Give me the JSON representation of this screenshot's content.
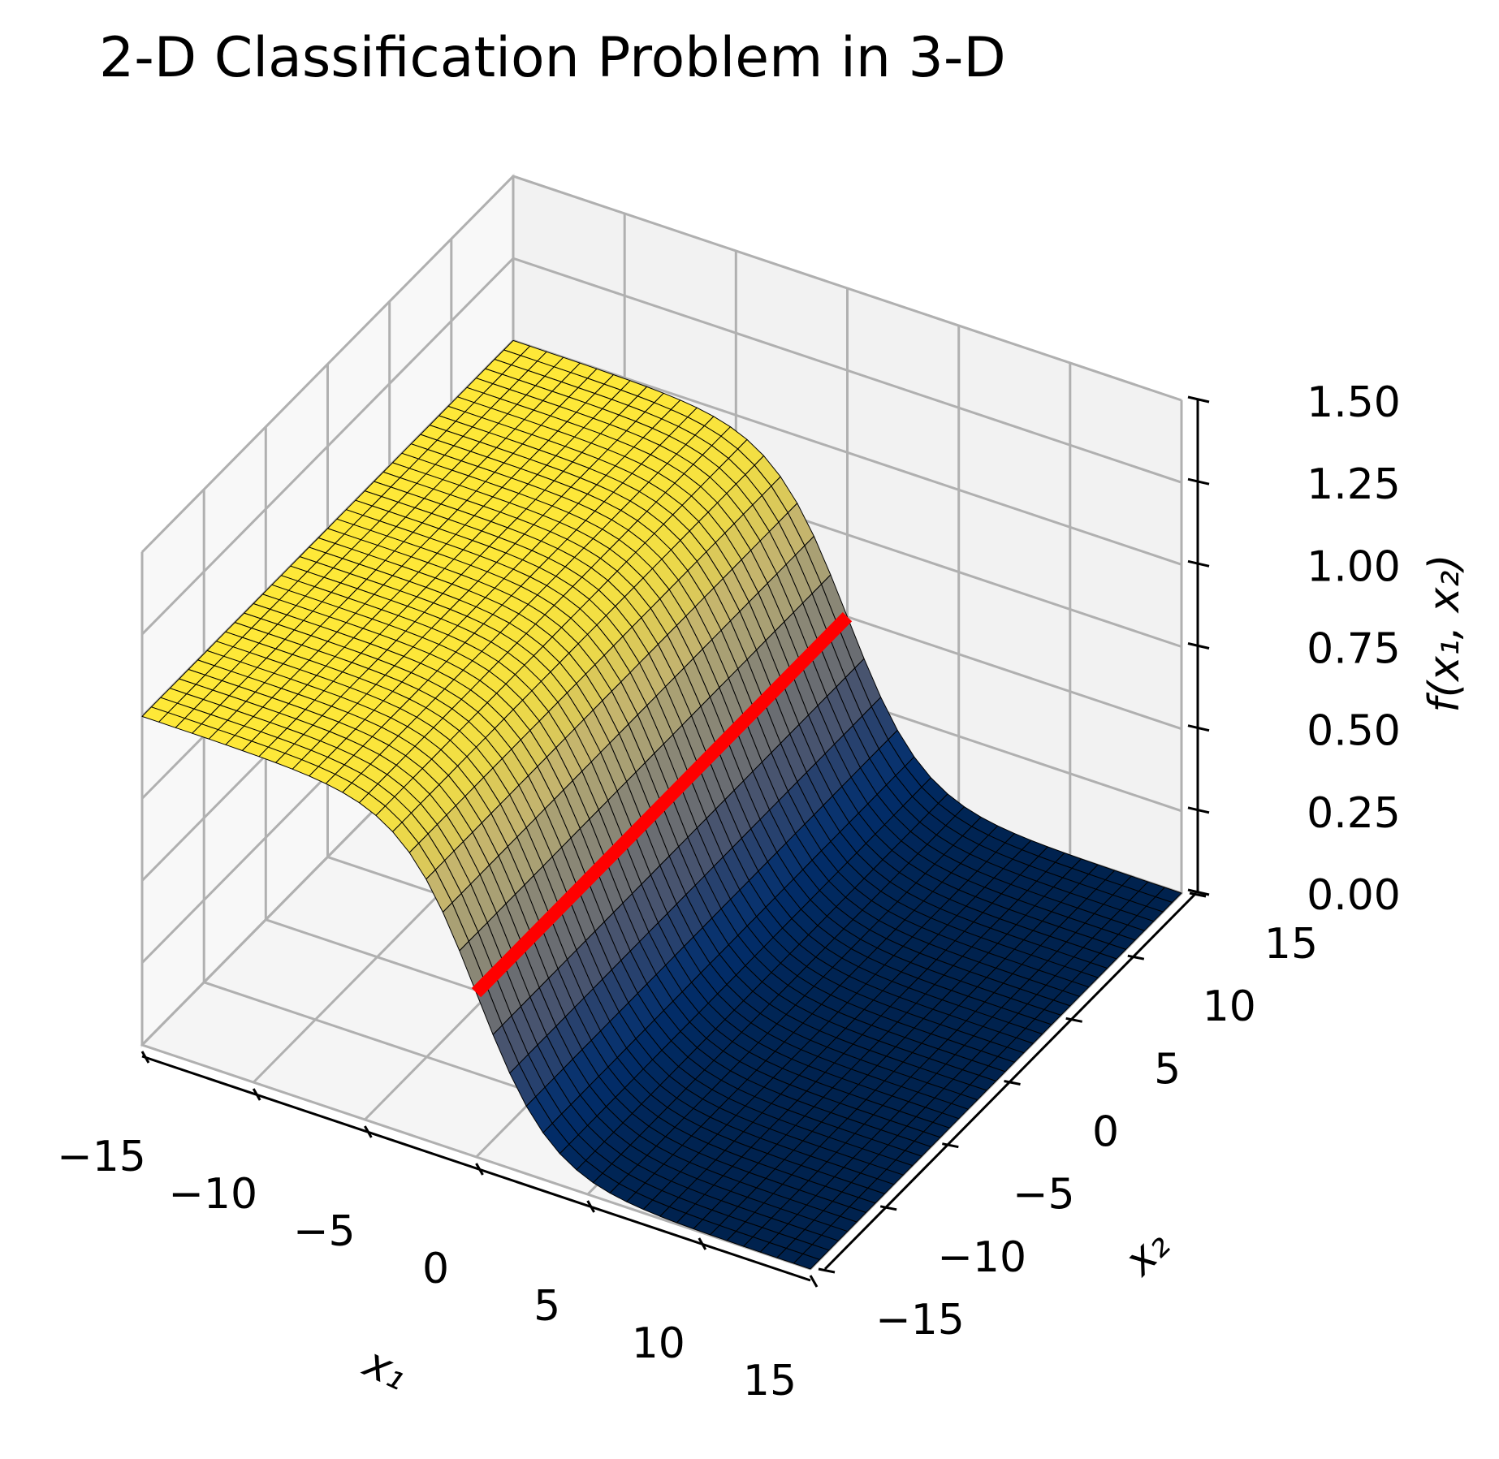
{
  "chart_data": {
    "type": "surface",
    "title": "2-D Classification Problem in 3-D",
    "xlabel": "x₁",
    "ylabel": "x₂",
    "zlabel": "f(x₁, x₂)",
    "x_ticks": [
      "−15",
      "−10",
      "−5",
      "0",
      "5",
      "10",
      "15"
    ],
    "y_ticks": [
      "−15",
      "−10",
      "−5",
      "0",
      "5",
      "10",
      "15"
    ],
    "z_ticks": [
      "0.00",
      "0.25",
      "0.50",
      "0.75",
      "1.00",
      "1.25",
      "1.50"
    ],
    "xlim": [
      -15,
      15
    ],
    "ylim": [
      -15,
      15
    ],
    "zlim": [
      0,
      1.5
    ],
    "surface": {
      "function": "f(x1, x2) = 1 / (1 + exp(0.6 * x1))",
      "colormap": "cividis",
      "x_range": [
        -15,
        15
      ],
      "y_range": [
        -15,
        15
      ]
    },
    "decision_line": {
      "color": "#ff0000",
      "x1": 0,
      "z": 0.5,
      "x2_range": [
        -15,
        15
      ]
    },
    "grid": true
  }
}
